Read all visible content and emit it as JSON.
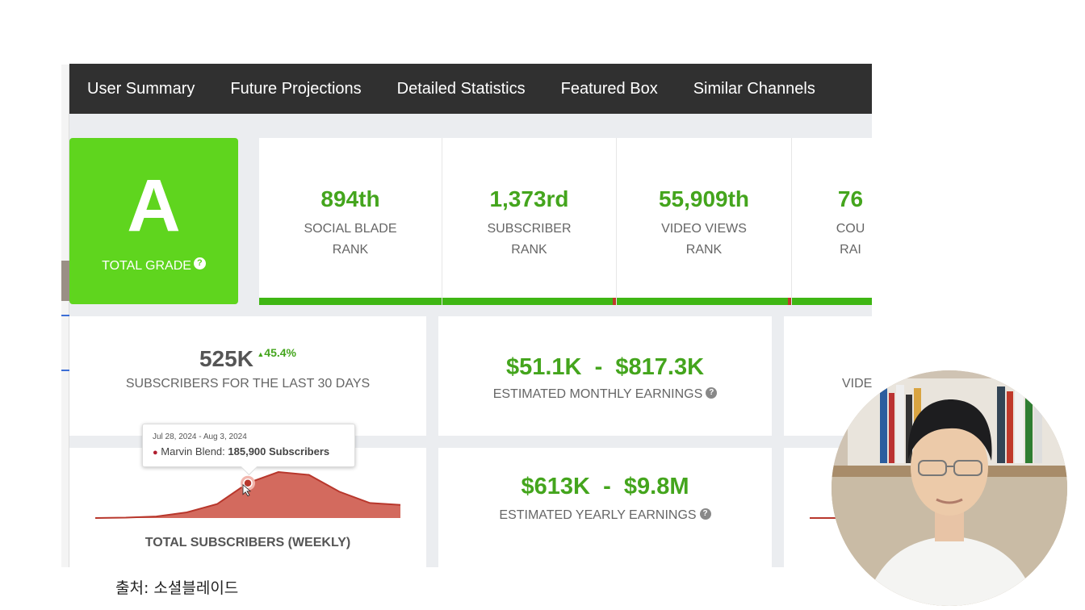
{
  "nav": {
    "items": [
      "User Summary",
      "Future Projections",
      "Detailed Statistics",
      "Featured Box",
      "Similar Channels"
    ]
  },
  "grade": {
    "letter": "A",
    "label": "TOTAL GRADE",
    "help": "?"
  },
  "ranks": [
    {
      "value": "894th",
      "label_line1": "SOCIAL BLADE",
      "label_line2": "RANK"
    },
    {
      "value": "1,373rd",
      "label_line1": "SUBSCRIBER",
      "label_line2": "RANK"
    },
    {
      "value": "55,909th",
      "label_line1": "VIDEO VIEWS",
      "label_line2": "RANK"
    },
    {
      "value": "76",
      "label_line1": "COU",
      "label_line2": "RAI"
    }
  ],
  "subscribers": {
    "value": "525K",
    "delta": "45.4%",
    "delta_arrow": "▲",
    "label": "SUBSCRIBERS FOR THE LAST 30 DAYS"
  },
  "monthly": {
    "low": "$51.1K",
    "sep": "-",
    "high": "$817.3K",
    "label": "ESTIMATED MONTHLY EARNINGS",
    "help": "?"
  },
  "yearly": {
    "low": "$613K",
    "sep": "-",
    "high": "$9.8M",
    "label": "ESTIMATED YEARLY EARNINGS",
    "help": "?"
  },
  "right_partial": {
    "label": "VIDE"
  },
  "chart": {
    "title": "TOTAL SUBSCRIBERS (WEEKLY)",
    "tooltip": {
      "date": "Jul 28, 2024 - Aug 3, 2024",
      "series": "Marvin Blend:",
      "value": "185,900 Subscribers"
    }
  },
  "chart_data": {
    "type": "area",
    "title": "TOTAL SUBSCRIBERS (WEEKLY)",
    "series": [
      {
        "name": "Marvin Blend",
        "values": [
          0,
          2000,
          8000,
          30000,
          75000,
          185900,
          245000,
          230000,
          140000,
          80000,
          70000
        ]
      }
    ],
    "highlight": {
      "index": 5,
      "label": "Jul 28, 2024 - Aug 3, 2024",
      "value": 185900
    },
    "color": "#d36a5e",
    "line_color": "#b8372c"
  },
  "source": "출처: 소셜블레이드",
  "colors": {
    "accent": "#44a51d",
    "grade_bg": "#5fd51e",
    "nav_bg": "#303030"
  }
}
